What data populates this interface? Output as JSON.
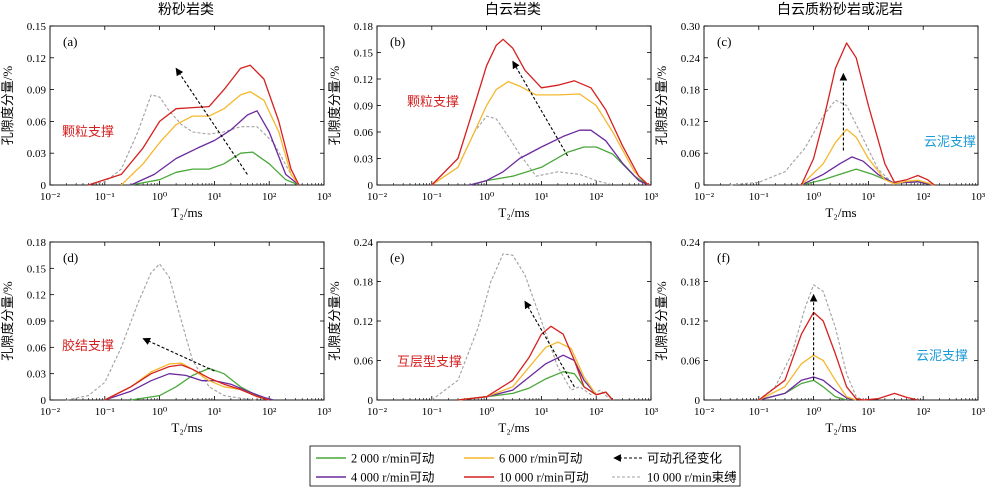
{
  "column_titles": [
    "粉砂岩类",
    "白云岩类",
    "白云质粉砂岩或泥岩"
  ],
  "colors": {
    "green": "#4aa83a",
    "orange": "#f5b82e",
    "purple": "#6b2a9e",
    "red": "#d62020",
    "gray": "#a0a0a0",
    "annot_red": "#d62020",
    "annot_blue": "#1a9ad6"
  },
  "legend": [
    {
      "key": "g",
      "label": "2 000 r/min可动",
      "style": "green"
    },
    {
      "key": "o",
      "label": "6 000 r/min可动",
      "style": "orange"
    },
    {
      "key": "arrow",
      "label": "可动孔径变化",
      "style": "arrow"
    },
    {
      "key": "p",
      "label": "4 000 r/min可动",
      "style": "purple"
    },
    {
      "key": "r",
      "label": "10 000 r/min可动",
      "style": "red"
    },
    {
      "key": "gray",
      "label": "10 000 r/min束缚",
      "style": "gray"
    }
  ],
  "chart_data": [
    {
      "type": "line",
      "panel": "(a)",
      "xscale": "log",
      "xlim": [
        0.01,
        1000
      ],
      "xticks": [
        "10⁻²",
        "10⁻¹",
        "10⁰",
        "10¹",
        "10²",
        "10³"
      ],
      "ylim": [
        0,
        0.15
      ],
      "yticks": [
        "0",
        "0.03",
        "0.06",
        "0.09",
        "0.12",
        "0.15"
      ],
      "xlabel": "T₂/ms",
      "ylabel": "孔隙度分量/%",
      "annotation": {
        "text": "颗粒支撑",
        "color": "annot_red"
      },
      "arrow": {
        "from": [
          40,
          0.01
        ],
        "to": [
          2,
          0.11
        ]
      },
      "series": [
        {
          "key": "gray",
          "x": [
            0.05,
            0.1,
            0.2,
            0.4,
            0.7,
            1,
            1.5,
            2.5,
            4,
            8,
            15,
            30,
            60,
            120,
            250,
            350
          ],
          "y": [
            0,
            0.003,
            0.015,
            0.05,
            0.085,
            0.083,
            0.07,
            0.057,
            0.05,
            0.048,
            0.05,
            0.055,
            0.055,
            0.04,
            0.01,
            0
          ]
        },
        {
          "key": "g",
          "x": [
            0.3,
            1,
            2,
            4,
            8,
            15,
            30,
            50,
            100,
            200,
            350
          ],
          "y": [
            0,
            0.005,
            0.012,
            0.015,
            0.015,
            0.02,
            0.03,
            0.031,
            0.02,
            0.005,
            0
          ]
        },
        {
          "key": "p",
          "x": [
            0.3,
            0.8,
            2,
            5,
            10,
            20,
            40,
            60,
            100,
            200,
            350
          ],
          "y": [
            0,
            0.01,
            0.025,
            0.035,
            0.042,
            0.052,
            0.066,
            0.07,
            0.05,
            0.01,
            0
          ]
        },
        {
          "key": "o",
          "x": [
            0.2,
            0.5,
            1,
            2,
            4,
            8,
            15,
            30,
            45,
            80,
            150,
            250,
            350
          ],
          "y": [
            0,
            0.02,
            0.04,
            0.057,
            0.065,
            0.065,
            0.072,
            0.085,
            0.088,
            0.08,
            0.05,
            0.01,
            0
          ]
        },
        {
          "key": "r",
          "x": [
            0.05,
            0.2,
            0.5,
            1,
            2,
            4,
            8,
            15,
            30,
            45,
            80,
            150,
            250,
            350
          ],
          "y": [
            0,
            0.01,
            0.035,
            0.06,
            0.072,
            0.073,
            0.074,
            0.09,
            0.11,
            0.113,
            0.1,
            0.06,
            0.015,
            0
          ]
        }
      ]
    },
    {
      "type": "line",
      "panel": "(b)",
      "xscale": "log",
      "xlim": [
        0.01,
        1000
      ],
      "xticks": [
        "10⁻²",
        "10⁻¹",
        "10⁰",
        "10¹",
        "10²",
        "10³"
      ],
      "ylim": [
        0,
        0.18
      ],
      "yticks": [
        "0",
        "0.03",
        "0.06",
        "0.09",
        "0.12",
        "0.15",
        "0.18"
      ],
      "xlabel": "T₂/ms",
      "ylabel": "孔隙度分量/%",
      "annotation": {
        "text": "颗粒支撑",
        "color": "annot_red"
      },
      "arrow": {
        "from": [
          30,
          0.033
        ],
        "to": [
          3,
          0.14
        ]
      },
      "series": [
        {
          "key": "gray",
          "x": [
            0.1,
            0.3,
            0.6,
            1,
            1.5,
            2.5,
            4,
            8,
            20,
            50,
            100,
            200
          ],
          "y": [
            0,
            0.02,
            0.06,
            0.078,
            0.075,
            0.055,
            0.035,
            0.01,
            0.015,
            0.012,
            0.005,
            0
          ]
        },
        {
          "key": "g",
          "x": [
            0.5,
            1,
            3,
            10,
            30,
            60,
            100,
            200,
            500,
            900
          ],
          "y": [
            0,
            0.005,
            0.01,
            0.02,
            0.037,
            0.043,
            0.043,
            0.035,
            0.01,
            0
          ]
        },
        {
          "key": "p",
          "x": [
            0.5,
            1,
            2,
            4,
            10,
            25,
            50,
            80,
            150,
            300,
            600,
            900
          ],
          "y": [
            0,
            0.005,
            0.015,
            0.03,
            0.043,
            0.055,
            0.062,
            0.062,
            0.05,
            0.025,
            0.005,
            0
          ]
        },
        {
          "key": "o",
          "x": [
            0.1,
            0.3,
            0.6,
            1,
            1.5,
            2.5,
            4,
            8,
            20,
            50,
            100,
            200,
            500,
            900
          ],
          "y": [
            0,
            0.02,
            0.06,
            0.09,
            0.108,
            0.117,
            0.112,
            0.102,
            0.102,
            0.103,
            0.09,
            0.06,
            0.015,
            0
          ]
        },
        {
          "key": "r",
          "x": [
            0.1,
            0.3,
            0.6,
            1,
            1.5,
            2,
            3,
            5,
            10,
            20,
            40,
            80,
            150,
            300,
            600,
            900
          ],
          "y": [
            0,
            0.03,
            0.09,
            0.135,
            0.158,
            0.165,
            0.155,
            0.13,
            0.11,
            0.113,
            0.118,
            0.11,
            0.085,
            0.045,
            0.01,
            0
          ]
        }
      ]
    },
    {
      "type": "line",
      "panel": "(c)",
      "xscale": "log",
      "xlim": [
        0.01,
        1000
      ],
      "xticks": [
        "10⁻²",
        "10⁻¹",
        "10⁰",
        "10¹",
        "10²",
        "10³"
      ],
      "ylim": [
        0,
        0.3
      ],
      "yticks": [
        "0",
        "0.06",
        "0.12",
        "0.18",
        "0.24",
        "0.30"
      ],
      "xlabel": "T₂/ms",
      "ylabel": "孔隙度分量/%",
      "annotation": {
        "text": "云泥支撑",
        "color": "annot_blue"
      },
      "arrow": {
        "from": [
          3.5,
          0.065
        ],
        "to": [
          3.5,
          0.21
        ]
      },
      "series": [
        {
          "key": "gray",
          "x": [
            0.03,
            0.1,
            0.3,
            0.7,
            1.5,
            2.5,
            4,
            7,
            15,
            30
          ],
          "y": [
            0,
            0.005,
            0.025,
            0.07,
            0.13,
            0.16,
            0.15,
            0.1,
            0.03,
            0
          ]
        },
        {
          "key": "g",
          "x": [
            0.6,
            1.5,
            3,
            6,
            12,
            30,
            50,
            80,
            120,
            160
          ],
          "y": [
            0,
            0.01,
            0.02,
            0.03,
            0.02,
            0.003,
            0.005,
            0.006,
            0.002,
            0
          ]
        },
        {
          "key": "p",
          "x": [
            0.6,
            1.5,
            3,
            5,
            8,
            15,
            30,
            50,
            80,
            120,
            160
          ],
          "y": [
            0,
            0.02,
            0.04,
            0.053,
            0.045,
            0.02,
            0.003,
            0.005,
            0.006,
            0.002,
            0
          ]
        },
        {
          "key": "o",
          "x": [
            0.6,
            1.5,
            2.5,
            4,
            6,
            10,
            20,
            30,
            50,
            80,
            120,
            160
          ],
          "y": [
            0,
            0.04,
            0.08,
            0.105,
            0.09,
            0.05,
            0.01,
            0.002,
            0.007,
            0.009,
            0.004,
            0
          ]
        },
        {
          "key": "r",
          "x": [
            0.6,
            1,
            1.5,
            2.5,
            4,
            6,
            10,
            20,
            30,
            50,
            80,
            120,
            160
          ],
          "y": [
            0,
            0.05,
            0.12,
            0.22,
            0.268,
            0.24,
            0.15,
            0.04,
            0.005,
            0.01,
            0.018,
            0.01,
            0
          ]
        }
      ]
    },
    {
      "type": "line",
      "panel": "(d)",
      "xscale": "log",
      "xlim": [
        0.01,
        1000
      ],
      "xticks": [
        "10⁻²",
        "10⁻¹",
        "10⁰",
        "10¹",
        "10²",
        "10³"
      ],
      "ylim": [
        0,
        0.18
      ],
      "yticks": [
        "0",
        "0.03",
        "0.06",
        "0.09",
        "0.12",
        "0.15",
        "0.18"
      ],
      "xlabel": "T₂/ms",
      "ylabel": "孔隙度分量/%",
      "annotation": {
        "text": "胶结支撑",
        "color": "annot_red"
      },
      "arrow": {
        "from": [
          10,
          0.033
        ],
        "to": [
          0.5,
          0.07
        ]
      },
      "series": [
        {
          "key": "gray",
          "x": [
            0.02,
            0.05,
            0.1,
            0.2,
            0.4,
            0.7,
            1,
            1.5,
            2.5,
            4,
            8,
            15,
            30,
            60
          ],
          "y": [
            0,
            0.005,
            0.02,
            0.06,
            0.11,
            0.145,
            0.155,
            0.14,
            0.09,
            0.045,
            0.015,
            0.005,
            0.002,
            0
          ]
        },
        {
          "key": "g",
          "x": [
            0.3,
            1,
            2,
            4,
            8,
            15,
            30,
            60,
            100
          ],
          "y": [
            0,
            0.005,
            0.015,
            0.028,
            0.036,
            0.03,
            0.015,
            0.005,
            0
          ]
        },
        {
          "key": "p",
          "x": [
            0.1,
            0.3,
            0.7,
            1.5,
            3,
            6,
            10,
            20,
            40,
            80,
            120
          ],
          "y": [
            0,
            0.01,
            0.022,
            0.03,
            0.028,
            0.022,
            0.022,
            0.018,
            0.01,
            0.003,
            0
          ]
        },
        {
          "key": "o",
          "x": [
            0.1,
            0.3,
            0.7,
            1.5,
            2.5,
            4,
            8,
            15,
            30,
            60,
            100
          ],
          "y": [
            0,
            0.015,
            0.032,
            0.041,
            0.042,
            0.035,
            0.022,
            0.015,
            0.012,
            0.004,
            0
          ]
        },
        {
          "key": "r",
          "x": [
            0.1,
            0.3,
            0.7,
            1.5,
            2.5,
            4,
            8,
            15,
            30,
            60,
            100
          ],
          "y": [
            0,
            0.015,
            0.03,
            0.038,
            0.04,
            0.035,
            0.025,
            0.018,
            0.012,
            0.004,
            0
          ]
        }
      ]
    },
    {
      "type": "line",
      "panel": "(e)",
      "xscale": "log",
      "xlim": [
        0.01,
        1000
      ],
      "xticks": [
        "10⁻²",
        "10⁻¹",
        "10⁰",
        "10¹",
        "10²",
        "10³"
      ],
      "ylim": [
        0,
        0.24
      ],
      "yticks": [
        "0",
        "0.06",
        "0.12",
        "0.18",
        "0.24"
      ],
      "xlabel": "T₂/ms",
      "ylabel": "孔隙度分量/%",
      "annotation": {
        "text": "互层型支撑",
        "color": "annot_red"
      },
      "arrow": {
        "from": [
          40,
          0.02
        ],
        "to": [
          5,
          0.15
        ]
      },
      "series": [
        {
          "key": "gray",
          "x": [
            0.1,
            0.3,
            0.7,
            1.2,
            2,
            3,
            5,
            10,
            20,
            35,
            50,
            80,
            120,
            180
          ],
          "y": [
            0,
            0.03,
            0.11,
            0.18,
            0.222,
            0.22,
            0.19,
            0.12,
            0.05,
            0.015,
            0.02,
            0.008,
            0.015,
            0
          ]
        },
        {
          "key": "g",
          "x": [
            0.3,
            1,
            3,
            6,
            12,
            25,
            40,
            60,
            100,
            150,
            200
          ],
          "y": [
            0,
            0.005,
            0.01,
            0.018,
            0.032,
            0.043,
            0.04,
            0.02,
            0.008,
            0.012,
            0
          ]
        },
        {
          "key": "p",
          "x": [
            0.3,
            1,
            3,
            6,
            12,
            25,
            40,
            60,
            100,
            150,
            200
          ],
          "y": [
            0,
            0.005,
            0.015,
            0.035,
            0.055,
            0.068,
            0.06,
            0.03,
            0.008,
            0.012,
            0
          ]
        },
        {
          "key": "o",
          "x": [
            0.3,
            1,
            3,
            6,
            12,
            20,
            35,
            60,
            100,
            150,
            200
          ],
          "y": [
            0,
            0.005,
            0.02,
            0.05,
            0.08,
            0.088,
            0.078,
            0.035,
            0.008,
            0.012,
            0
          ]
        },
        {
          "key": "r",
          "x": [
            0.3,
            1,
            3,
            6,
            10,
            15,
            25,
            40,
            60,
            100,
            150,
            200
          ],
          "y": [
            0,
            0.005,
            0.03,
            0.065,
            0.1,
            0.112,
            0.1,
            0.06,
            0.02,
            0.008,
            0.012,
            0
          ]
        }
      ]
    },
    {
      "type": "line",
      "panel": "(f)",
      "xscale": "log",
      "xlim": [
        0.01,
        1000
      ],
      "xticks": [
        "10⁻²",
        "10⁻¹",
        "10⁰",
        "10¹",
        "10²",
        "10³"
      ],
      "ylim": [
        0,
        0.24
      ],
      "yticks": [
        "0",
        "0.06",
        "0.12",
        "0.18",
        "0.24"
      ],
      "xlabel": "T₂/ms",
      "ylabel": "孔隙度分量/%",
      "annotation": {
        "text": "云泥支撑",
        "color": "annot_blue"
      },
      "arrow": {
        "from": [
          1,
          0.03
        ],
        "to": [
          1,
          0.16
        ]
      },
      "series": [
        {
          "key": "gray",
          "x": [
            0.1,
            0.2,
            0.4,
            0.7,
            1,
            1.5,
            2.5,
            4,
            6,
            8
          ],
          "y": [
            0,
            0.02,
            0.07,
            0.14,
            0.175,
            0.165,
            0.11,
            0.04,
            0.005,
            0
          ]
        },
        {
          "key": "g",
          "x": [
            0.1,
            0.3,
            0.6,
            1,
            1.5,
            2.5,
            4
          ],
          "y": [
            0,
            0.01,
            0.025,
            0.03,
            0.02,
            0.005,
            0
          ]
        },
        {
          "key": "p",
          "x": [
            0.1,
            0.3,
            0.6,
            1,
            1.5,
            2.5,
            4,
            6
          ],
          "y": [
            0,
            0.01,
            0.03,
            0.035,
            0.03,
            0.015,
            0.003,
            0
          ]
        },
        {
          "key": "o",
          "x": [
            0.1,
            0.3,
            0.6,
            1,
            1.5,
            2.5,
            4,
            6
          ],
          "y": [
            0,
            0.02,
            0.055,
            0.068,
            0.06,
            0.03,
            0.005,
            0
          ]
        },
        {
          "key": "r",
          "x": [
            0.1,
            0.3,
            0.6,
            1,
            1.5,
            2.5,
            4,
            6,
            8,
            15,
            30,
            50,
            80
          ],
          "y": [
            0,
            0.03,
            0.1,
            0.133,
            0.12,
            0.07,
            0.02,
            0.002,
            0,
            0.002,
            0.01,
            0.004,
            0
          ]
        }
      ]
    }
  ]
}
